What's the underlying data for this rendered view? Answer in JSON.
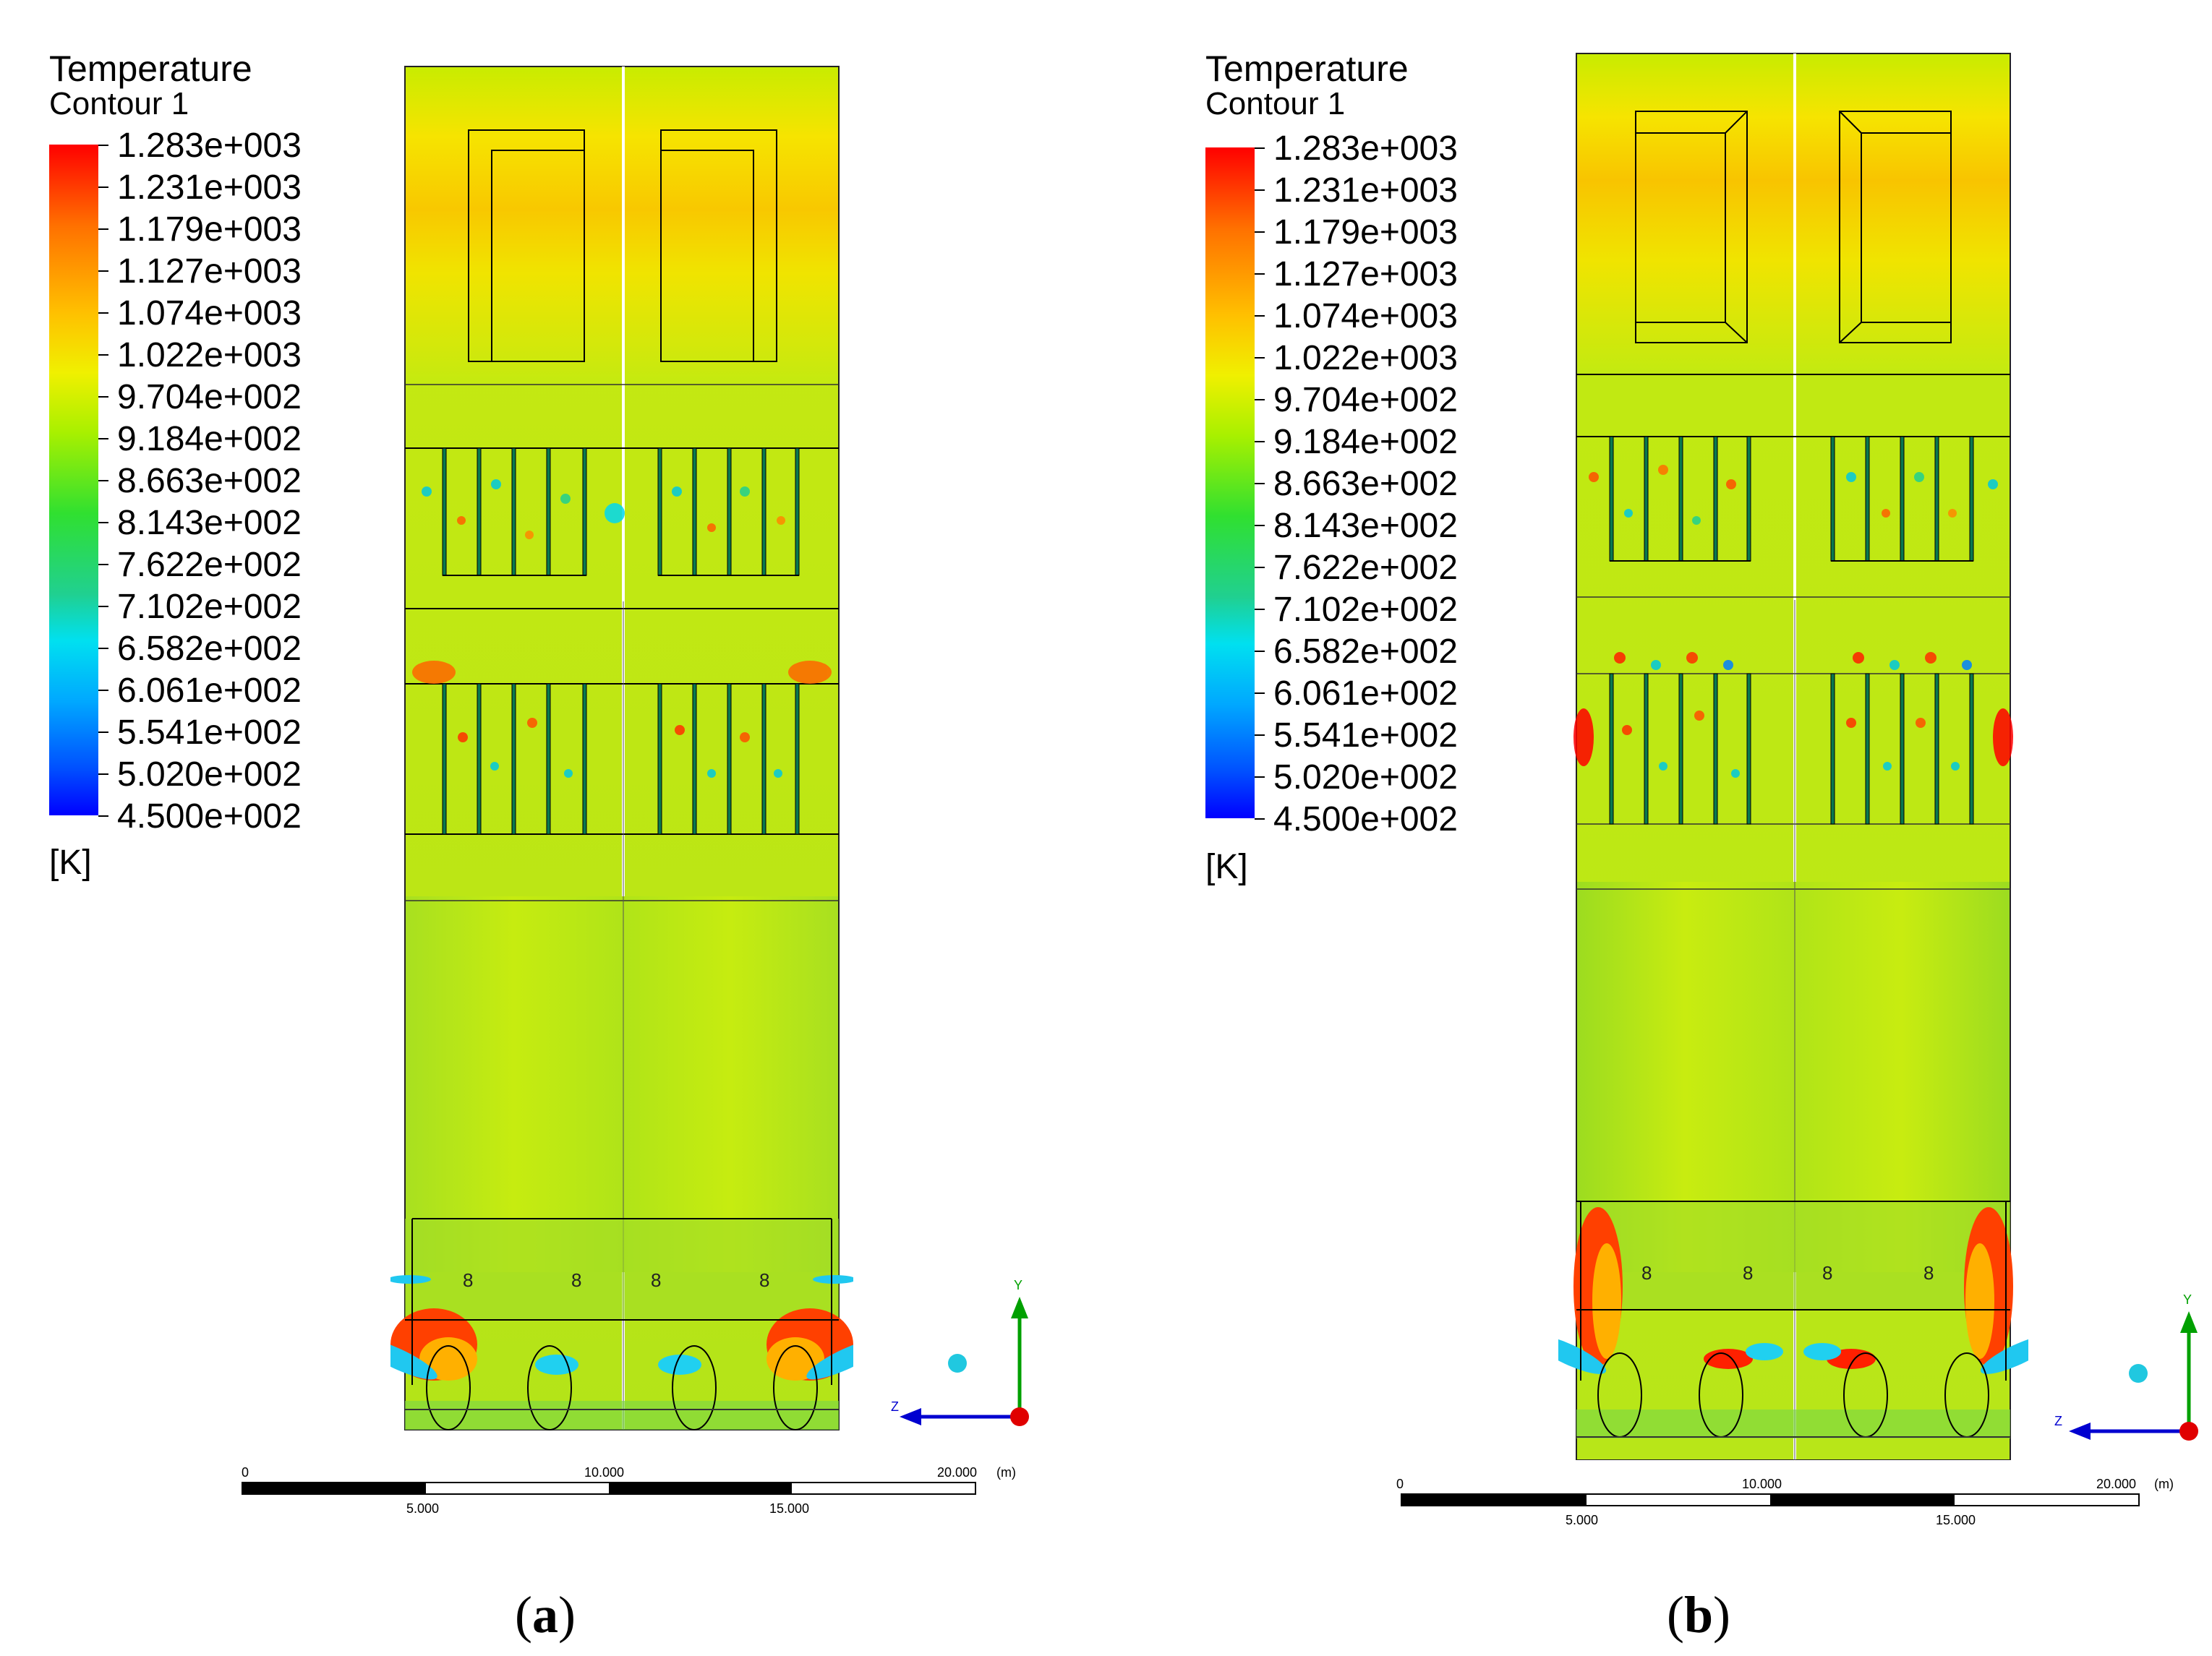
{
  "legend": {
    "title": "Temperature",
    "subtitle": "Contour 1",
    "unit": "[K]",
    "levels": [
      "1.283e+003",
      "1.231e+003",
      "1.179e+003",
      "1.127e+003",
      "1.074e+003",
      "1.022e+003",
      "9.704e+002",
      "9.184e+002",
      "8.663e+002",
      "8.143e+002",
      "7.622e+002",
      "7.102e+002",
      "6.582e+002",
      "6.061e+002",
      "5.541e+002",
      "5.020e+002",
      "4.500e+002"
    ],
    "colors": [
      "#ff0000",
      "#ff7000",
      "#ffc000",
      "#f0f000",
      "#a8f000",
      "#30e030",
      "#20d090",
      "#00e0f0",
      "#00a8ff",
      "#0050ff",
      "#0000ff"
    ]
  },
  "scale_bar": {
    "ticks_top": [
      "0",
      "10.000",
      "20.000"
    ],
    "ticks_bottom": [
      "5.000",
      "15.000"
    ],
    "unit": "(m)"
  },
  "axis_triad": {
    "y": "Y",
    "z": "Z"
  },
  "panels": [
    {
      "id": "a",
      "caption_open": "(",
      "caption_letter": "a",
      "caption_close": ")"
    },
    {
      "id": "b",
      "caption_open": "(",
      "caption_letter": "b",
      "caption_close": ")"
    }
  ]
}
